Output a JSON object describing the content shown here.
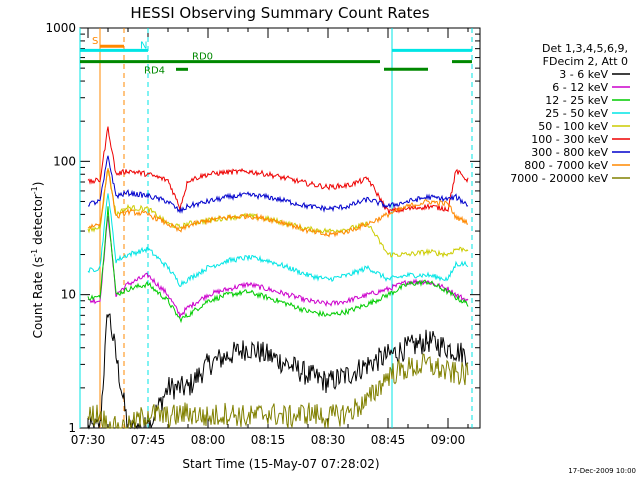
{
  "chart_data": {
    "type": "line",
    "title": "HESSI Observing Summary Count Rates",
    "xlabel": "Start Time (15-May-07 07:28:02)",
    "ylabel": "Count Rate (s⁻¹ detector⁻¹)",
    "ylabel_main": "Count Rate (s",
    "ylabel_sup1": "-1",
    "ylabel_mid": " detector",
    "ylabel_sup2": "-1",
    "ylabel_end": ")",
    "y_scale": "log",
    "ylim": [
      1,
      1000
    ],
    "xlim": [
      "07:28",
      "09:08"
    ],
    "x_ticks": [
      "07:30",
      "07:45",
      "08:00",
      "08:15",
      "08:30",
      "08:45",
      "09:00"
    ],
    "y_ticks": [
      "1",
      "10",
      "100",
      "1000"
    ],
    "footer_date": "17-Dec-2009 10:00",
    "legend": {
      "placement": "right",
      "header": [
        "Det 1,3,4,5,6,9,",
        "FDecim 2, Att 0"
      ]
    },
    "series": [
      {
        "name": "3 - 6 keV",
        "color": "#000000",
        "x": [
          "07:30",
          "07:33",
          "07:35",
          "07:40",
          "07:45",
          "07:50",
          "07:55",
          "08:00",
          "08:05",
          "08:10",
          "08:15",
          "08:20",
          "08:25",
          "08:30",
          "08:35",
          "08:40",
          "08:45",
          "08:50",
          "08:55",
          "09:00",
          "09:05"
        ],
        "values": [
          1,
          1,
          8,
          1,
          1,
          2,
          2,
          3,
          3.5,
          4,
          3.5,
          3,
          2.5,
          2.2,
          2.5,
          3,
          3.5,
          4,
          4.5,
          4,
          3.5
        ]
      },
      {
        "name": "6 - 12 keV",
        "color": "#cc00cc",
        "x": [
          "07:30",
          "07:33",
          "07:35",
          "07:37",
          "07:40",
          "07:45",
          "07:50",
          "07:53",
          "07:55",
          "08:00",
          "08:05",
          "08:10",
          "08:15",
          "08:20",
          "08:25",
          "08:30",
          "08:35",
          "08:40",
          "08:45",
          "08:50",
          "08:55",
          "09:00",
          "09:02",
          "09:05"
        ],
        "values": [
          9,
          9,
          40,
          10,
          12,
          14,
          10,
          7,
          8,
          10,
          11,
          12,
          11,
          10,
          9,
          8.5,
          9,
          10,
          11,
          12.5,
          12.5,
          11,
          10,
          9
        ]
      },
      {
        "name": "12 - 25 keV",
        "color": "#00cc00",
        "x": [
          "07:30",
          "07:33",
          "07:35",
          "07:37",
          "07:40",
          "07:45",
          "07:50",
          "07:53",
          "07:55",
          "08:00",
          "08:05",
          "08:10",
          "08:15",
          "08:20",
          "08:25",
          "08:30",
          "08:35",
          "08:40",
          "08:45",
          "08:50",
          "08:55",
          "09:00",
          "09:02",
          "09:05"
        ],
        "values": [
          9.5,
          9.5,
          45,
          10,
          11,
          12,
          9,
          6.5,
          7,
          9,
          10,
          10.5,
          9.5,
          8.5,
          7.5,
          7,
          7.5,
          8.5,
          10,
          12,
          12.5,
          10.5,
          9.5,
          8.5
        ]
      },
      {
        "name": "25 - 50 keV",
        "color": "#00e5e5",
        "x": [
          "07:30",
          "07:33",
          "07:35",
          "07:37",
          "07:40",
          "07:45",
          "07:50",
          "07:53",
          "07:55",
          "08:00",
          "08:05",
          "08:10",
          "08:15",
          "08:20",
          "08:25",
          "08:30",
          "08:35",
          "08:40",
          "08:45",
          "08:50",
          "08:55",
          "09:00",
          "09:02",
          "09:05"
        ],
        "values": [
          15,
          16,
          60,
          18,
          20,
          22,
          16,
          12,
          13,
          16,
          18,
          19,
          18,
          16,
          14,
          13,
          14,
          16,
          13,
          14,
          14,
          13,
          17,
          17
        ]
      },
      {
        "name": "50 - 100 keV",
        "color": "#cccc00",
        "x": [
          "07:30",
          "07:33",
          "07:35",
          "07:37",
          "07:40",
          "07:45",
          "07:50",
          "07:53",
          "07:55",
          "08:00",
          "08:05",
          "08:10",
          "08:15",
          "08:20",
          "08:25",
          "08:30",
          "08:35",
          "08:40",
          "08:45",
          "08:50",
          "08:55",
          "09:00",
          "09:02",
          "09:05"
        ],
        "values": [
          30,
          32,
          90,
          40,
          45,
          44,
          34,
          32,
          34,
          36,
          38,
          39,
          37,
          34,
          31,
          30,
          31,
          34,
          20,
          20,
          21,
          20,
          22,
          22
        ]
      },
      {
        "name": "100 - 300 keV",
        "color": "#ee0000",
        "x": [
          "07:30",
          "07:33",
          "07:35",
          "07:37",
          "07:40",
          "07:45",
          "07:50",
          "07:53",
          "07:55",
          "08:00",
          "08:05",
          "08:10",
          "08:15",
          "08:20",
          "08:25",
          "08:30",
          "08:35",
          "08:40",
          "08:45",
          "08:50",
          "08:55",
          "09:00",
          "09:02",
          "09:05"
        ],
        "values": [
          70,
          72,
          180,
          80,
          85,
          80,
          72,
          45,
          72,
          80,
          83,
          84,
          80,
          74,
          68,
          64,
          66,
          74,
          42,
          44,
          46,
          44,
          85,
          72
        ]
      },
      {
        "name": "300 - 800 keV",
        "color": "#0000cc",
        "x": [
          "07:30",
          "07:33",
          "07:35",
          "07:37",
          "07:40",
          "07:45",
          "07:50",
          "07:53",
          "07:55",
          "08:00",
          "08:05",
          "08:10",
          "08:15",
          "08:20",
          "08:25",
          "08:30",
          "08:35",
          "08:40",
          "08:45",
          "08:50",
          "08:55",
          "09:00",
          "09:02",
          "09:05"
        ],
        "values": [
          48,
          50,
          110,
          55,
          58,
          55,
          50,
          42,
          46,
          50,
          54,
          56,
          54,
          50,
          46,
          44,
          46,
          52,
          46,
          50,
          54,
          52,
          54,
          47
        ]
      },
      {
        "name": "800 - 7000 keV",
        "color": "#ff8800",
        "x": [
          "07:30",
          "07:33",
          "07:35",
          "07:37",
          "07:40",
          "07:45",
          "07:50",
          "07:53",
          "07:55",
          "08:00",
          "08:05",
          "08:10",
          "08:15",
          "08:20",
          "08:25",
          "08:30",
          "08:35",
          "08:40",
          "08:45",
          "08:50",
          "08:55",
          "09:00",
          "09:02",
          "09:05"
        ],
        "values": [
          32,
          34,
          90,
          38,
          42,
          40,
          34,
          30,
          33,
          36,
          38,
          39,
          37,
          34,
          30,
          28,
          30,
          34,
          40,
          46,
          50,
          48,
          38,
          35
        ]
      },
      {
        "name": "7000 - 20000 keV",
        "color": "#808000",
        "x": [
          "07:30",
          "07:33",
          "07:35",
          "07:40",
          "07:45",
          "07:50",
          "07:55",
          "08:00",
          "08:05",
          "08:10",
          "08:15",
          "08:20",
          "08:25",
          "08:30",
          "08:35",
          "08:40",
          "08:45",
          "08:50",
          "08:55",
          "09:00",
          "09:05"
        ],
        "values": [
          1.2,
          1.3,
          1,
          1,
          1.3,
          1.2,
          1.3,
          1.2,
          1.3,
          1.2,
          1.3,
          1.2,
          1.3,
          1.2,
          1.3,
          1.6,
          2.5,
          2.8,
          3,
          2.6,
          2.5
        ]
      }
    ],
    "annotations": [
      {
        "label": "S",
        "color": "#ff8800",
        "x_start": "07:33",
        "x_end": "07:39",
        "y": 730
      },
      {
        "label": "N",
        "color": "#00e5e5",
        "x_start": "07:28",
        "x_end": "07:45",
        "y": 680
      },
      {
        "label": "",
        "color": "#00e5e5",
        "x_start": "08:46",
        "x_end": "09:06",
        "y": 680
      },
      {
        "label": "RD0",
        "color": "#008800",
        "x_start": "07:28",
        "x_end": "08:43",
        "y": 560
      },
      {
        "label": "",
        "color": "#008800",
        "x_start": "09:01",
        "x_end": "09:06",
        "y": 560
      },
      {
        "label": "RD4",
        "color": "#008800",
        "x_start": "07:52",
        "x_end": "07:55",
        "y": 490
      },
      {
        "label": "",
        "color": "#008800",
        "x_start": "08:44",
        "x_end": "08:55",
        "y": 490
      }
    ],
    "vertical_lines": [
      {
        "x": "07:28",
        "color": "#00e5e5",
        "style": "solid"
      },
      {
        "x": "07:33",
        "color": "#ff8800",
        "style": "solid"
      },
      {
        "x": "07:39",
        "color": "#ff8800",
        "style": "dashed"
      },
      {
        "x": "07:45",
        "color": "#00e5e5",
        "style": "dashed"
      },
      {
        "x": "08:46",
        "color": "#00e5e5",
        "style": "solid"
      },
      {
        "x": "09:06",
        "color": "#00e5e5",
        "style": "dashed"
      }
    ]
  }
}
